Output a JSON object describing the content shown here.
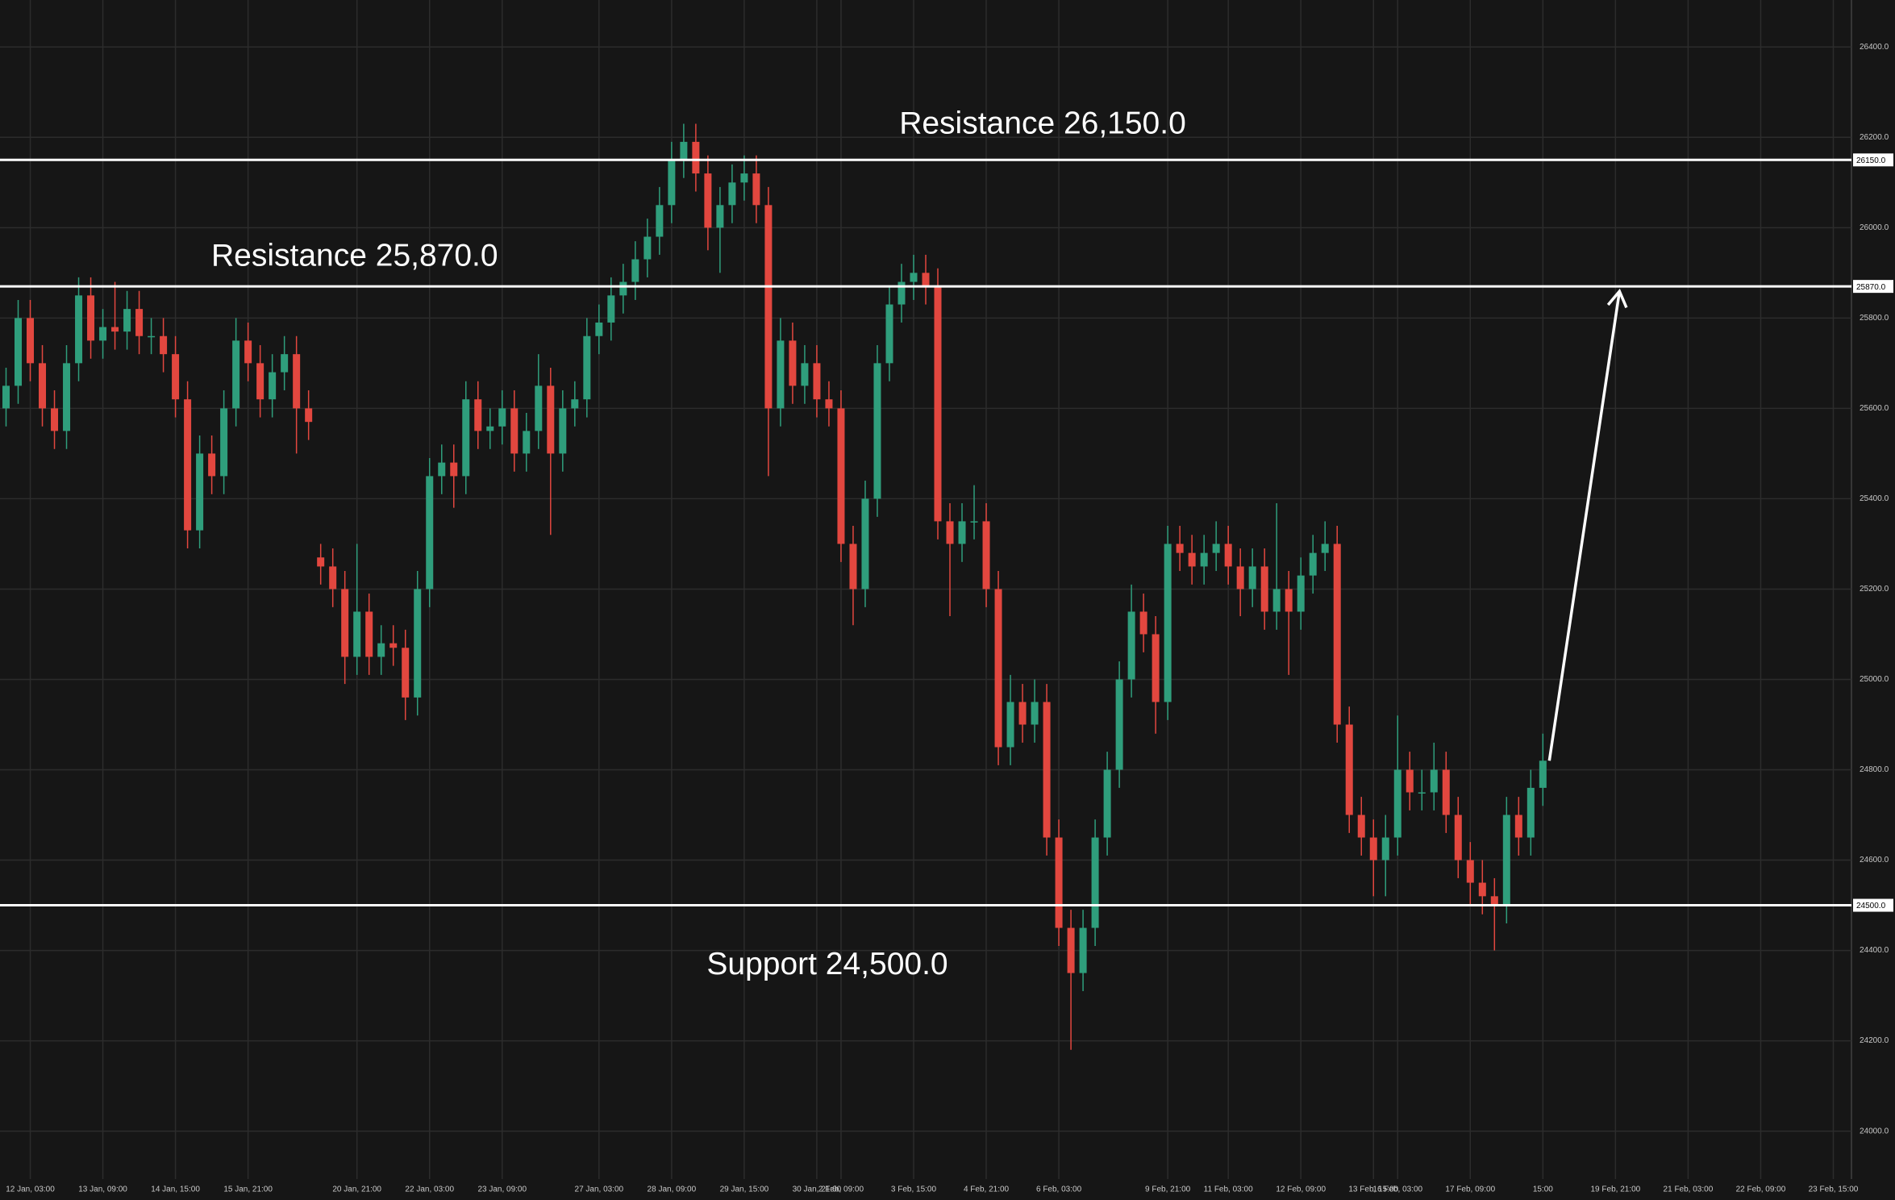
{
  "chart_data": {
    "type": "candlestick",
    "categories": [
      null,
      null,
      "12 Jan, 03:00",
      null,
      null,
      null,
      null,
      null,
      "13 Jan, 09:00",
      null,
      null,
      null,
      null,
      null,
      "14 Jan, 15:00",
      null,
      null,
      null,
      null,
      null,
      "15 Jan, 21:00",
      null,
      null,
      null,
      null,
      null,
      null,
      null,
      null,
      "20 Jan, 21:00",
      null,
      null,
      null,
      null,
      null,
      "22 Jan, 03:00",
      null,
      null,
      null,
      null,
      null,
      "23 Jan, 09:00",
      null,
      null,
      null,
      null,
      null,
      null,
      null,
      "27 Jan, 03:00",
      null,
      null,
      null,
      null,
      null,
      "28 Jan, 09:00",
      null,
      null,
      null,
      null,
      null,
      "29 Jan, 15:00",
      null,
      null,
      null,
      null,
      null,
      "30 Jan, 21:00",
      null,
      "2 Feb, 09:00",
      null,
      null,
      null,
      null,
      null,
      "3 Feb, 15:00",
      null,
      null,
      null,
      null,
      null,
      "4 Feb, 21:00",
      null,
      null,
      null,
      null,
      null,
      "6 Feb, 03:00",
      null,
      null,
      null,
      null,
      null,
      null,
      null,
      null,
      "9 Feb, 21:00",
      null,
      null,
      null,
      null,
      "11 Feb, 03:00",
      null,
      null,
      null,
      null,
      null,
      "12 Feb, 09:00",
      null,
      null,
      null,
      null,
      null,
      "13 Feb, 15:00",
      null,
      "16 Feb, 03:00",
      null,
      null,
      null,
      null,
      null,
      "17 Feb, 09:00",
      null,
      null,
      null,
      null,
      null,
      "15:00",
      null,
      null,
      null,
      null,
      null,
      "19 Feb, 21:00",
      null,
      null,
      null,
      null,
      null,
      "21 Feb, 03:00",
      null,
      null,
      null,
      null,
      null,
      "22 Feb, 09:00",
      null,
      null,
      null,
      null,
      null,
      "23 Feb, 15:00",
      null
    ],
    "ohlc": [
      [
        25600,
        25690,
        25560,
        25650
      ],
      [
        25650,
        25840,
        25610,
        25800
      ],
      [
        25800,
        25840,
        25660,
        25700
      ],
      [
        25700,
        25740,
        25560,
        25600
      ],
      [
        25600,
        25640,
        25510,
        25550
      ],
      [
        25550,
        25740,
        25510,
        25700
      ],
      [
        25700,
        25890,
        25660,
        25850
      ],
      [
        25850,
        25890,
        25710,
        25750
      ],
      [
        25750,
        25820,
        25710,
        25780
      ],
      [
        25780,
        25880,
        25730,
        25770
      ],
      [
        25770,
        25860,
        25730,
        25820
      ],
      [
        25820,
        25860,
        25720,
        25760
      ],
      [
        25760,
        25800,
        25720,
        25760
      ],
      [
        25760,
        25800,
        25680,
        25720
      ],
      [
        25720,
        25760,
        25580,
        25620
      ],
      [
        25620,
        25660,
        25290,
        25330
      ],
      [
        25330,
        25540,
        25290,
        25500
      ],
      [
        25500,
        25540,
        25410,
        25450
      ],
      [
        25450,
        25640,
        25410,
        25600
      ],
      [
        25600,
        25800,
        25560,
        25750
      ],
      [
        25750,
        25790,
        25660,
        25700
      ],
      [
        25700,
        25740,
        25580,
        25620
      ],
      [
        25620,
        25720,
        25580,
        25680
      ],
      [
        25680,
        25760,
        25640,
        25720
      ],
      [
        25720,
        25760,
        25500,
        25600
      ],
      [
        25600,
        25640,
        25530,
        25570
      ],
      [
        25270,
        25300,
        25210,
        25250
      ],
      [
        25250,
        25290,
        25160,
        25200
      ],
      [
        25200,
        25240,
        24990,
        25050
      ],
      [
        25050,
        25300,
        25010,
        25150
      ],
      [
        25150,
        25190,
        25010,
        25050
      ],
      [
        25050,
        25120,
        25010,
        25080
      ],
      [
        25080,
        25120,
        25030,
        25070
      ],
      [
        25070,
        25110,
        24910,
        24960
      ],
      [
        24960,
        25240,
        24920,
        25200
      ],
      [
        25200,
        25490,
        25160,
        25450
      ],
      [
        25450,
        25520,
        25410,
        25480
      ],
      [
        25480,
        25520,
        25380,
        25450
      ],
      [
        25450,
        25660,
        25410,
        25620
      ],
      [
        25620,
        25660,
        25510,
        25550
      ],
      [
        25550,
        25600,
        25510,
        25560
      ],
      [
        25560,
        25640,
        25520,
        25600
      ],
      [
        25600,
        25640,
        25460,
        25500
      ],
      [
        25500,
        25590,
        25460,
        25550
      ],
      [
        25550,
        25720,
        25510,
        25650
      ],
      [
        25650,
        25690,
        25320,
        25500
      ],
      [
        25500,
        25640,
        25460,
        25600
      ],
      [
        25600,
        25660,
        25560,
        25620
      ],
      [
        25620,
        25800,
        25580,
        25760
      ],
      [
        25760,
        25830,
        25720,
        25790
      ],
      [
        25790,
        25890,
        25750,
        25850
      ],
      [
        25850,
        25920,
        25810,
        25880
      ],
      [
        25880,
        25970,
        25840,
        25930
      ],
      [
        25930,
        26020,
        25890,
        25980
      ],
      [
        25980,
        26090,
        25940,
        26050
      ],
      [
        26050,
        26190,
        26010,
        26150
      ],
      [
        26150,
        26230,
        26110,
        26190
      ],
      [
        26190,
        26230,
        26080,
        26120
      ],
      [
        26120,
        26160,
        25950,
        26000
      ],
      [
        26000,
        26090,
        25900,
        26050
      ],
      [
        26050,
        26140,
        26010,
        26100
      ],
      [
        26100,
        26160,
        26060,
        26120
      ],
      [
        26120,
        26160,
        26010,
        26050
      ],
      [
        26050,
        26090,
        25450,
        25600
      ],
      [
        25600,
        25800,
        25560,
        25750
      ],
      [
        25750,
        25790,
        25610,
        25650
      ],
      [
        25650,
        25740,
        25610,
        25700
      ],
      [
        25700,
        25740,
        25580,
        25620
      ],
      [
        25620,
        25660,
        25560,
        25600
      ],
      [
        25600,
        25640,
        25260,
        25300
      ],
      [
        25300,
        25340,
        25120,
        25200
      ],
      [
        25200,
        25440,
        25160,
        25400
      ],
      [
        25400,
        25740,
        25360,
        25700
      ],
      [
        25700,
        25870,
        25660,
        25830
      ],
      [
        25830,
        25920,
        25790,
        25880
      ],
      [
        25880,
        25940,
        25840,
        25900
      ],
      [
        25900,
        25940,
        25830,
        25870
      ],
      [
        25870,
        25910,
        25310,
        25350
      ],
      [
        25350,
        25390,
        25140,
        25300
      ],
      [
        25300,
        25390,
        25260,
        25350
      ],
      [
        25350,
        25430,
        25310,
        25350
      ],
      [
        25350,
        25390,
        25160,
        25200
      ],
      [
        25200,
        25240,
        24810,
        24850
      ],
      [
        24850,
        25010,
        24810,
        24950
      ],
      [
        24950,
        24990,
        24860,
        24900
      ],
      [
        24900,
        25000,
        24860,
        24950
      ],
      [
        24950,
        24990,
        24610,
        24650
      ],
      [
        24650,
        24690,
        24410,
        24450
      ],
      [
        24450,
        24490,
        24180,
        24350
      ],
      [
        24350,
        24490,
        24310,
        24450
      ],
      [
        24450,
        24690,
        24410,
        24650
      ],
      [
        24650,
        24840,
        24610,
        24800
      ],
      [
        24800,
        25040,
        24760,
        25000
      ],
      [
        25000,
        25210,
        24960,
        25150
      ],
      [
        25150,
        25190,
        25060,
        25100
      ],
      [
        25100,
        25140,
        24880,
        24950
      ],
      [
        24950,
        25340,
        24910,
        25300
      ],
      [
        25300,
        25340,
        25240,
        25280
      ],
      [
        25280,
        25320,
        25210,
        25250
      ],
      [
        25250,
        25320,
        25210,
        25280
      ],
      [
        25280,
        25350,
        25240,
        25300
      ],
      [
        25300,
        25340,
        25210,
        25250
      ],
      [
        25250,
        25290,
        25140,
        25200
      ],
      [
        25200,
        25290,
        25160,
        25250
      ],
      [
        25250,
        25290,
        25110,
        25150
      ],
      [
        25150,
        25390,
        25110,
        25200
      ],
      [
        25200,
        25240,
        25010,
        25150
      ],
      [
        25150,
        25270,
        25110,
        25230
      ],
      [
        25230,
        25320,
        25190,
        25280
      ],
      [
        25280,
        25350,
        25240,
        25300
      ],
      [
        25300,
        25340,
        24860,
        24900
      ],
      [
        24900,
        24940,
        24660,
        24700
      ],
      [
        24700,
        24740,
        24610,
        24650
      ],
      [
        24650,
        24690,
        24520,
        24600
      ],
      [
        24600,
        24700,
        24520,
        24650
      ],
      [
        24650,
        24920,
        24610,
        24800
      ],
      [
        24800,
        24840,
        24710,
        24750
      ],
      [
        24750,
        24800,
        24710,
        24750
      ],
      [
        24750,
        24860,
        24710,
        24800
      ],
      [
        24800,
        24840,
        24660,
        24700
      ],
      [
        24700,
        24740,
        24560,
        24600
      ],
      [
        24600,
        24640,
        24500,
        24550
      ],
      [
        24550,
        24600,
        24480,
        24520
      ],
      [
        24520,
        24560,
        24400,
        24500
      ],
      [
        24500,
        24740,
        24460,
        24700
      ],
      [
        24700,
        24740,
        24610,
        24650
      ],
      [
        24650,
        24800,
        24610,
        24760
      ],
      [
        24760,
        24880,
        24720,
        24820
      ]
    ],
    "up_color": "#2f9e7c",
    "down_color": "#e2473f",
    "ylim": [
      23894,
      26504
    ],
    "yticks": [
      {
        "value": 24000,
        "label": "24000.0"
      },
      {
        "value": 24200,
        "label": "24200.0"
      },
      {
        "value": 24400,
        "label": "24400.0"
      },
      {
        "value": 24600,
        "label": "24600.0"
      },
      {
        "value": 24800,
        "label": "24800.0"
      },
      {
        "value": 25000,
        "label": "25000.0"
      },
      {
        "value": 25200,
        "label": "25200.0"
      },
      {
        "value": 25400,
        "label": "25400.0"
      },
      {
        "value": 25600,
        "label": "25600.0"
      },
      {
        "value": 25800,
        "label": "25800.0"
      },
      {
        "value": 26000,
        "label": "26000.0"
      },
      {
        "value": 26200,
        "label": "26200.0"
      },
      {
        "value": 26400,
        "label": "26400.0"
      }
    ],
    "grid": true,
    "levels": [
      {
        "value": 26150,
        "label": "26150.0",
        "annotation": "Resistance 26,150.0"
      },
      {
        "value": 25870,
        "label": "25870.0",
        "annotation": "Resistance 25,870.0"
      },
      {
        "value": 24500,
        "label": "24500.0",
        "annotation": "Support 24,500.0"
      }
    ]
  }
}
